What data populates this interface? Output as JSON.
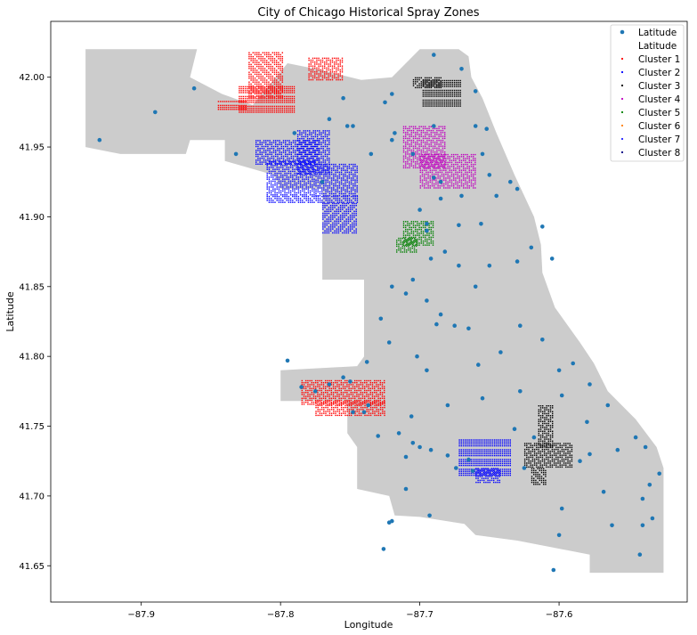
{
  "chart_data": {
    "type": "scatter",
    "title": "City of Chicago Historical Spray Zones",
    "xlabel": "Longitude",
    "ylabel": "Latitude",
    "xlim": [
      -87.965,
      -87.508
    ],
    "ylim": [
      41.624,
      42.04
    ],
    "xticks": [
      {
        "value": -87.9,
        "label": "−87.9"
      },
      {
        "value": -87.8,
        "label": "−87.8"
      },
      {
        "value": -87.7,
        "label": "−87.7"
      },
      {
        "value": -87.6,
        "label": "−87.6"
      }
    ],
    "yticks": [
      {
        "value": 41.65,
        "label": "41.65"
      },
      {
        "value": 41.7,
        "label": "41.70"
      },
      {
        "value": 41.75,
        "label": "41.75"
      },
      {
        "value": 41.8,
        "label": "41.80"
      },
      {
        "value": 41.85,
        "label": "41.85"
      },
      {
        "value": 41.9,
        "label": "41.90"
      },
      {
        "value": 41.95,
        "label": "41.95"
      },
      {
        "value": 42.0,
        "label": "42.00"
      }
    ],
    "grid": false,
    "legend_position": "top-right",
    "legend": [
      {
        "label": "Latitude",
        "color": "#1f77b4",
        "marker": "dot"
      },
      {
        "label": "Latitude",
        "color": "#ffffff",
        "marker": "none"
      },
      {
        "label": "Cluster 1",
        "color": "#ff0000",
        "marker": "small-dot"
      },
      {
        "label": "Cluster 2",
        "color": "#0000ff",
        "marker": "small-dot"
      },
      {
        "label": "Cluster 3",
        "color": "#000000",
        "marker": "small-dot"
      },
      {
        "label": "Cluster 4",
        "color": "#bf00bf",
        "marker": "small-dot"
      },
      {
        "label": "Cluster 5",
        "color": "#008000",
        "marker": "small-dot"
      },
      {
        "label": "Cluster 6",
        "color": "#ff7f0e",
        "marker": "small-dot"
      },
      {
        "label": "Cluster 7",
        "color": "#1f1fff",
        "marker": "small-dot"
      },
      {
        "label": "Cluster 8",
        "color": "#000080",
        "marker": "small-dot"
      }
    ],
    "basemap": {
      "color": "#cccccc",
      "outline": [
        [
          -87.94,
          42.02
        ],
        [
          -87.86,
          42.02
        ],
        [
          -87.865,
          42.0
        ],
        [
          -87.842,
          41.988
        ],
        [
          -87.82,
          41.98
        ],
        [
          -87.795,
          42.01
        ],
        [
          -87.77,
          42.005
        ],
        [
          -87.742,
          41.998
        ],
        [
          -87.72,
          42.0
        ],
        [
          -87.7,
          42.02
        ],
        [
          -87.672,
          42.02
        ],
        [
          -87.665,
          42.015
        ],
        [
          -87.663,
          42.0
        ],
        [
          -87.655,
          41.985
        ],
        [
          -87.645,
          41.96
        ],
        [
          -87.632,
          41.93
        ],
        [
          -87.618,
          41.9
        ],
        [
          -87.613,
          41.88
        ],
        [
          -87.612,
          41.86
        ],
        [
          -87.603,
          41.835
        ],
        [
          -87.585,
          41.81
        ],
        [
          -87.575,
          41.795
        ],
        [
          -87.565,
          41.775
        ],
        [
          -87.545,
          41.755
        ],
        [
          -87.53,
          41.735
        ],
        [
          -87.525,
          41.72
        ],
        [
          -87.525,
          41.645
        ],
        [
          -87.578,
          41.645
        ],
        [
          -87.578,
          41.658
        ],
        [
          -87.63,
          41.668
        ],
        [
          -87.66,
          41.672
        ],
        [
          -87.668,
          41.68
        ],
        [
          -87.7,
          41.685
        ],
        [
          -87.718,
          41.686
        ],
        [
          -87.722,
          41.7
        ],
        [
          -87.745,
          41.705
        ],
        [
          -87.745,
          41.735
        ],
        [
          -87.752,
          41.745
        ],
        [
          -87.752,
          41.768
        ],
        [
          -87.765,
          41.768
        ],
        [
          -87.8,
          41.768
        ],
        [
          -87.8,
          41.79
        ],
        [
          -87.745,
          41.793
        ],
        [
          -87.74,
          41.8
        ],
        [
          -87.74,
          41.855
        ],
        [
          -87.77,
          41.855
        ],
        [
          -87.77,
          41.92
        ],
        [
          -87.8,
          41.92
        ],
        [
          -87.805,
          41.93
        ],
        [
          -87.84,
          41.94
        ],
        [
          -87.84,
          41.955
        ],
        [
          -87.865,
          41.955
        ],
        [
          -87.868,
          41.945
        ],
        [
          -87.915,
          41.945
        ],
        [
          -87.94,
          41.95
        ],
        [
          -87.94,
          42.02
        ]
      ]
    },
    "points": [
      [
        -87.93,
        41.955
      ],
      [
        -87.89,
        41.975
      ],
      [
        -87.862,
        41.992
      ],
      [
        -87.832,
        41.945
      ],
      [
        -87.79,
        41.96
      ],
      [
        -87.765,
        41.97
      ],
      [
        -87.752,
        41.965
      ],
      [
        -87.748,
        41.965
      ],
      [
        -87.735,
        41.945
      ],
      [
        -87.725,
        41.982
      ],
      [
        -87.72,
        41.955
      ],
      [
        -87.718,
        41.96
      ],
      [
        -87.705,
        41.945
      ],
      [
        -87.69,
        41.965
      ],
      [
        -87.69,
        41.928
      ],
      [
        -87.685,
        41.925
      ],
      [
        -87.67,
        41.915
      ],
      [
        -87.66,
        41.965
      ],
      [
        -87.655,
        41.945
      ],
      [
        -87.65,
        41.93
      ],
      [
        -87.645,
        41.915
      ],
      [
        -87.635,
        41.925
      ],
      [
        -87.63,
        41.92
      ],
      [
        -87.612,
        41.893
      ],
      [
        -87.605,
        41.87
      ],
      [
        -87.62,
        41.878
      ],
      [
        -87.63,
        41.868
      ],
      [
        -87.656,
        41.895
      ],
      [
        -87.65,
        41.865
      ],
      [
        -87.66,
        41.85
      ],
      [
        -87.665,
        41.82
      ],
      [
        -87.672,
        41.865
      ],
      [
        -87.682,
        41.875
      ],
      [
        -87.692,
        41.87
      ],
      [
        -87.695,
        41.84
      ],
      [
        -87.705,
        41.855
      ],
      [
        -87.71,
        41.845
      ],
      [
        -87.72,
        41.85
      ],
      [
        -87.728,
        41.827
      ],
      [
        -87.722,
        41.81
      ],
      [
        -87.738,
        41.796
      ],
      [
        -87.75,
        41.782
      ],
      [
        -87.755,
        41.785
      ],
      [
        -87.765,
        41.78
      ],
      [
        -87.775,
        41.775
      ],
      [
        -87.785,
        41.778
      ],
      [
        -87.795,
        41.797
      ],
      [
        -87.748,
        41.76
      ],
      [
        -87.74,
        41.76
      ],
      [
        -87.737,
        41.765
      ],
      [
        -87.73,
        41.743
      ],
      [
        -87.715,
        41.745
      ],
      [
        -87.706,
        41.757
      ],
      [
        -87.705,
        41.738
      ],
      [
        -87.7,
        41.735
      ],
      [
        -87.692,
        41.733
      ],
      [
        -87.68,
        41.729
      ],
      [
        -87.674,
        41.72
      ],
      [
        -87.665,
        41.726
      ],
      [
        -87.662,
        41.718
      ],
      [
        -87.658,
        41.794
      ],
      [
        -87.655,
        41.77
      ],
      [
        -87.642,
        41.803
      ],
      [
        -87.628,
        41.775
      ],
      [
        -87.612,
        41.812
      ],
      [
        -87.6,
        41.79
      ],
      [
        -87.598,
        41.772
      ],
      [
        -87.59,
        41.795
      ],
      [
        -87.578,
        41.78
      ],
      [
        -87.58,
        41.753
      ],
      [
        -87.578,
        41.73
      ],
      [
        -87.585,
        41.725
      ],
      [
        -87.565,
        41.765
      ],
      [
        -87.558,
        41.733
      ],
      [
        -87.545,
        41.742
      ],
      [
        -87.538,
        41.735
      ],
      [
        -87.528,
        41.716
      ],
      [
        -87.535,
        41.708
      ],
      [
        -87.54,
        41.698
      ],
      [
        -87.533,
        41.684
      ],
      [
        -87.54,
        41.679
      ],
      [
        -87.542,
        41.658
      ],
      [
        -87.562,
        41.679
      ],
      [
        -87.568,
        41.703
      ],
      [
        -87.598,
        41.691
      ],
      [
        -87.6,
        41.672
      ],
      [
        -87.604,
        41.647
      ],
      [
        -87.625,
        41.72
      ],
      [
        -87.632,
        41.748
      ],
      [
        -87.618,
        41.742
      ],
      [
        -87.71,
        41.705
      ],
      [
        -87.72,
        41.682
      ],
      [
        -87.722,
        41.681
      ],
      [
        -87.71,
        41.728
      ],
      [
        -87.693,
        41.686
      ],
      [
        -87.695,
        41.79
      ],
      [
        -87.685,
        41.83
      ],
      [
        -87.688,
        41.823
      ],
      [
        -87.675,
        41.822
      ],
      [
        -87.702,
        41.8
      ],
      [
        -87.695,
        41.89
      ],
      [
        -87.7,
        41.905
      ],
      [
        -87.695,
        41.895
      ],
      [
        -87.672,
        41.894
      ],
      [
        -87.685,
        41.913
      ],
      [
        -87.77,
        41.925
      ],
      [
        -87.755,
        41.985
      ],
      [
        -87.72,
        41.988
      ],
      [
        -87.69,
        42.016
      ],
      [
        -87.67,
        42.006
      ],
      [
        -87.66,
        41.99
      ],
      [
        -87.652,
        41.963
      ],
      [
        -87.726,
        41.662
      ],
      [
        -87.628,
        41.822
      ],
      [
        -87.68,
        41.765
      ]
    ],
    "clusters": [
      {
        "name": "Cluster 1",
        "color": "#ff0000",
        "regions": [
          {
            "x": [
              -87.823,
              -87.798
            ],
            "y": [
              41.985,
              42.018
            ]
          },
          {
            "x": [
              -87.83,
              -87.79
            ],
            "y": [
              41.975,
              41.995
            ]
          },
          {
            "x": [
              -87.845,
              -87.825
            ],
            "y": [
              41.977,
              41.983
            ]
          },
          {
            "x": [
              -87.78,
              -87.755
            ],
            "y": [
              41.998,
              42.014
            ]
          },
          {
            "x": [
              -87.785,
              -87.725
            ],
            "y": [
              41.765,
              41.783
            ]
          },
          {
            "x": [
              -87.775,
              -87.725
            ],
            "y": [
              41.758,
              41.768
            ]
          }
        ]
      },
      {
        "name": "Cluster 2",
        "color": "#0000ff",
        "regions": [
          {
            "x": [
              -87.818,
              -87.772
            ],
            "y": [
              41.938,
              41.955
            ]
          },
          {
            "x": [
              -87.81,
              -87.775
            ],
            "y": [
              41.915,
              41.94
            ]
          },
          {
            "x": [
              -87.788,
              -87.765
            ],
            "y": [
              41.93,
              41.962
            ]
          },
          {
            "x": [
              -87.775,
              -87.745
            ],
            "y": [
              41.915,
              41.938
            ]
          },
          {
            "x": [
              -87.81,
              -87.745
            ],
            "y": [
              41.91,
              41.915
            ]
          },
          {
            "x": [
              -87.77,
              -87.745
            ],
            "y": [
              41.888,
              41.91
            ]
          },
          {
            "x": [
              -87.672,
              -87.635
            ],
            "y": [
              41.715,
              41.742
            ]
          },
          {
            "x": [
              -87.66,
              -87.642
            ],
            "y": [
              41.71,
              41.72
            ]
          }
        ]
      },
      {
        "name": "Cluster 3",
        "color": "#000000",
        "regions": [
          {
            "x": [
              -87.698,
              -87.67
            ],
            "y": [
              41.977,
              41.998
            ]
          },
          {
            "x": [
              -87.705,
              -87.685
            ],
            "y": [
              41.992,
              42.0
            ]
          },
          {
            "x": [
              -87.615,
              -87.605
            ],
            "y": [
              41.735,
              41.765
            ]
          },
          {
            "x": [
              -87.625,
              -87.59
            ],
            "y": [
              41.72,
              41.738
            ]
          },
          {
            "x": [
              -87.62,
              -87.61
            ],
            "y": [
              41.708,
              41.72
            ]
          }
        ]
      },
      {
        "name": "Cluster 4",
        "color": "#bf00bf",
        "regions": [
          {
            "x": [
              -87.712,
              -87.682
            ],
            "y": [
              41.935,
              41.965
            ]
          },
          {
            "x": [
              -87.7,
              -87.66
            ],
            "y": [
              41.92,
              41.945
            ]
          }
        ]
      },
      {
        "name": "Cluster 5",
        "color": "#008000",
        "regions": [
          {
            "x": [
              -87.712,
              -87.69
            ],
            "y": [
              41.88,
              41.897
            ]
          },
          {
            "x": [
              -87.717,
              -87.702
            ],
            "y": [
              41.875,
              41.885
            ]
          }
        ]
      }
    ]
  }
}
